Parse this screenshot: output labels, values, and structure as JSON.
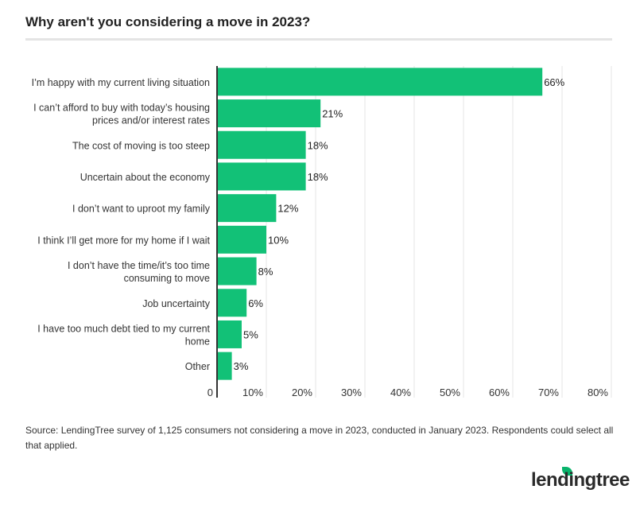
{
  "chart_data": {
    "type": "bar",
    "orientation": "horizontal",
    "title": "Why aren't you considering a move in 2023?",
    "categories": [
      "I'm happy with my current living situation",
      "I can't afford to buy with today's housing prices and/or interest rates",
      "The cost of moving is too steep",
      "Uncertain about the economy",
      "I don't want to uproot my family",
      "I think I'll get more for my home if I wait",
      "I don't have the time/it's too time consuming to move",
      "Job uncertainty",
      "I have too much debt tied to my current home",
      "Other"
    ],
    "category_lines": [
      [
        "I’m happy with my current living situation"
      ],
      [
        "I can’t afford to buy with today’s housing",
        "prices and/or interest rates"
      ],
      [
        "The cost of moving is too steep"
      ],
      [
        "Uncertain about the economy"
      ],
      [
        "I don’t want to uproot my family"
      ],
      [
        "I think I’ll get more for my home if I wait"
      ],
      [
        "I don’t have the time/it’s too time",
        "consuming to move"
      ],
      [
        "Job uncertainty"
      ],
      [
        "I have too much debt tied to my current",
        "home"
      ],
      [
        "Other"
      ]
    ],
    "values": [
      66,
      21,
      18,
      18,
      12,
      10,
      8,
      6,
      5,
      3
    ],
    "data_labels": [
      "66%",
      "21%",
      "18%",
      "18%",
      "12%",
      "10%",
      "8%",
      "6%",
      "5%",
      "3%"
    ],
    "xlim": [
      0,
      80
    ],
    "ticks": [
      0,
      10,
      20,
      30,
      40,
      50,
      60,
      70,
      80
    ],
    "tick_labels": [
      "0",
      "10%",
      "20%",
      "30%",
      "40%",
      "50%",
      "60%",
      "70%",
      "80%"
    ],
    "grid": true,
    "color": "#12c177"
  },
  "source": "Source: LendingTree survey of 1,125 consumers not considering a move in 2023, conducted in January 2023. Respondents could select all that applied.",
  "logo": "lendingtree"
}
